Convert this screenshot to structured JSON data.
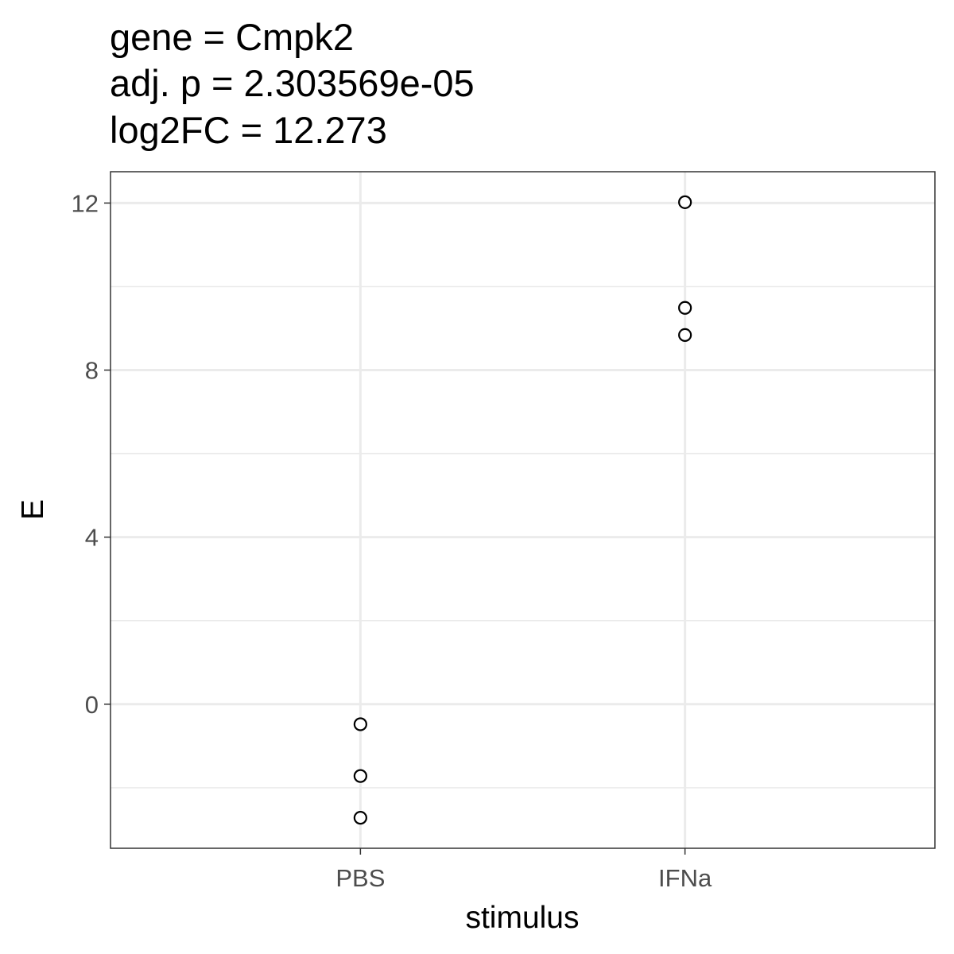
{
  "chart_data": {
    "type": "scatter",
    "title_lines": [
      "gene = Cmpk2",
      "adj. p = 2.303569e-05",
      "log2FC = 12.273"
    ],
    "xlabel": "stimulus",
    "ylabel": "E",
    "categories": [
      "PBS",
      "IFNa"
    ],
    "y_ticks": [
      0,
      4,
      8,
      12
    ],
    "y_tick_labels": [
      "0",
      "4",
      "8",
      "12"
    ],
    "ylim": [
      -3.45,
      12.75
    ],
    "grid": true,
    "points": [
      {
        "category": "PBS",
        "y": -0.48
      },
      {
        "category": "PBS",
        "y": -1.72
      },
      {
        "category": "PBS",
        "y": -2.72
      },
      {
        "category": "IFNa",
        "y": 12.02
      },
      {
        "category": "IFNa",
        "y": 9.49
      },
      {
        "category": "IFNa",
        "y": 8.84
      }
    ],
    "colors": {
      "point_stroke": "#000000",
      "point_fill": "#ffffff",
      "grid": "#ebebeb",
      "panel_border": "#333333",
      "tick_text": "#4d4d4d"
    }
  }
}
